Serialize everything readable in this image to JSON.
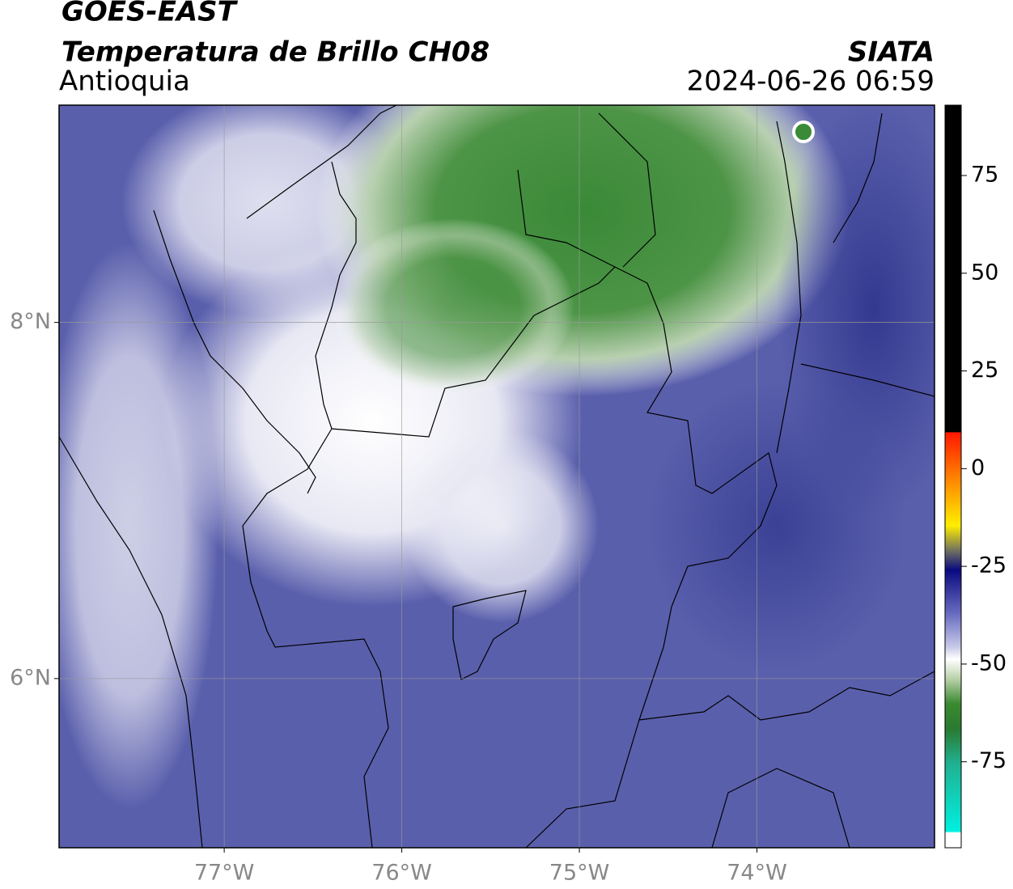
{
  "header": {
    "title": "GOES-EAST",
    "subtitle": "Temperatura de Brillo CH08",
    "region": "Antioquia",
    "source": "SIATA",
    "timestamp": "2024-06-26 06:59"
  },
  "map": {
    "xlim": [
      -77.93,
      -73.0
    ],
    "ylim": [
      5.05,
      9.22
    ],
    "xticks": [
      {
        "value": -77,
        "label": "77°W"
      },
      {
        "value": -76,
        "label": "76°W"
      },
      {
        "value": -75,
        "label": "75°W"
      },
      {
        "value": -74,
        "label": "74°W"
      }
    ],
    "yticks": [
      {
        "value": 8,
        "label": "8°N"
      },
      {
        "value": 6,
        "label": "6°N"
      }
    ],
    "grid": true
  },
  "colorbar": {
    "lim": [
      -97,
      93
    ],
    "ticks": [
      75,
      50,
      25,
      0,
      -25,
      -50,
      -75
    ]
  }
}
